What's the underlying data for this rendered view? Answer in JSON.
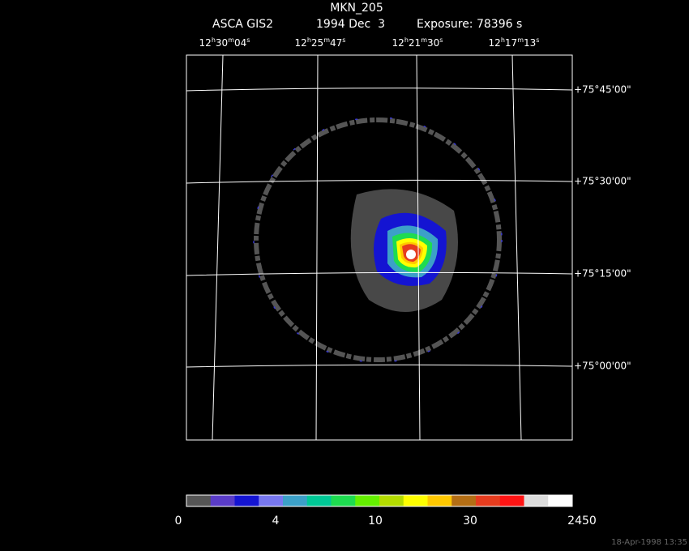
{
  "header": {
    "title": "MKN_205",
    "instrument": "ASCA GIS2",
    "date": "1994 Dec  3",
    "exposure": "Exposure: 78396 s"
  },
  "ra_labels": [
    [
      "12",
      "h",
      "30",
      "m",
      "04",
      "s"
    ],
    [
      "12",
      "h",
      "25",
      "m",
      "47",
      "s"
    ],
    [
      "12",
      "h",
      "21",
      "m",
      "30",
      "s"
    ],
    [
      "12",
      "h",
      "17",
      "m",
      "13",
      "s"
    ]
  ],
  "dec_labels": [
    "+75°45'00\"",
    "+75°30'00\"",
    "+75°15'00\"",
    "+75°00'00\""
  ],
  "colorbar": {
    "colors": [
      "#555555",
      "#5a3cc8",
      "#1414d2",
      "#7878f0",
      "#3ca0c8",
      "#00c896",
      "#1edc50",
      "#64f000",
      "#b4dc00",
      "#ffff00",
      "#ffc800",
      "#b46e14",
      "#e63c1e",
      "#ff1414",
      "#dcdcdc",
      "#ffffff"
    ],
    "labels": [
      "0",
      "4",
      "10",
      "30",
      "2450"
    ]
  },
  "footer": {
    "timestamp": "18-Apr-1998 13:35"
  }
}
